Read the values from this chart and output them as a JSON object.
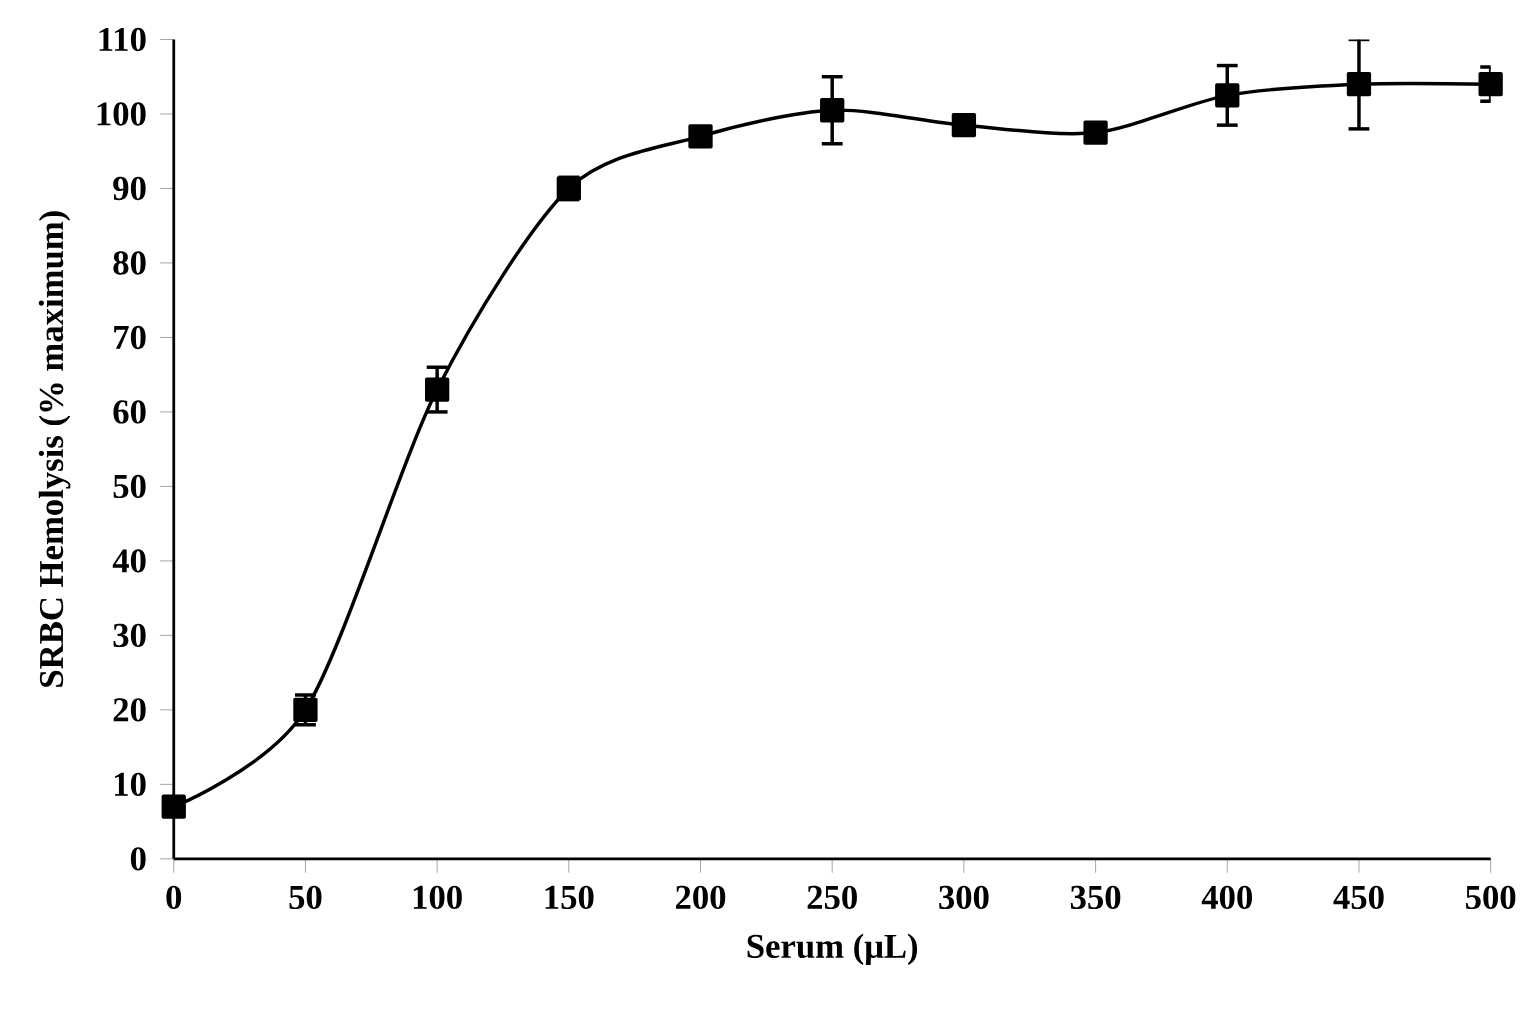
{
  "chart_data": {
    "type": "line",
    "xlabel": "Serum (μL)",
    "ylabel": "SRBC Hemolysis (% maximum)",
    "x": [
      0,
      50,
      100,
      150,
      200,
      250,
      300,
      350,
      400,
      450,
      500
    ],
    "series": [
      {
        "color": "#000000",
        "values": [
          7,
          20,
          63,
          90,
          97,
          100.5,
          98.5,
          97.5,
          102.5,
          104,
          104
        ],
        "errors": [
          null,
          2,
          3,
          1.5,
          null,
          4.5,
          null,
          null,
          4,
          6,
          2.3
        ]
      }
    ],
    "xlim": [
      0,
      500
    ],
    "ylim": [
      0,
      110
    ],
    "xticks": [
      0,
      50,
      100,
      150,
      200,
      250,
      300,
      350,
      400,
      450,
      500
    ],
    "yticks": [
      0,
      10,
      20,
      30,
      40,
      50,
      60,
      70,
      80,
      90,
      100,
      110
    ],
    "marker": "square",
    "line_style": "solid"
  }
}
